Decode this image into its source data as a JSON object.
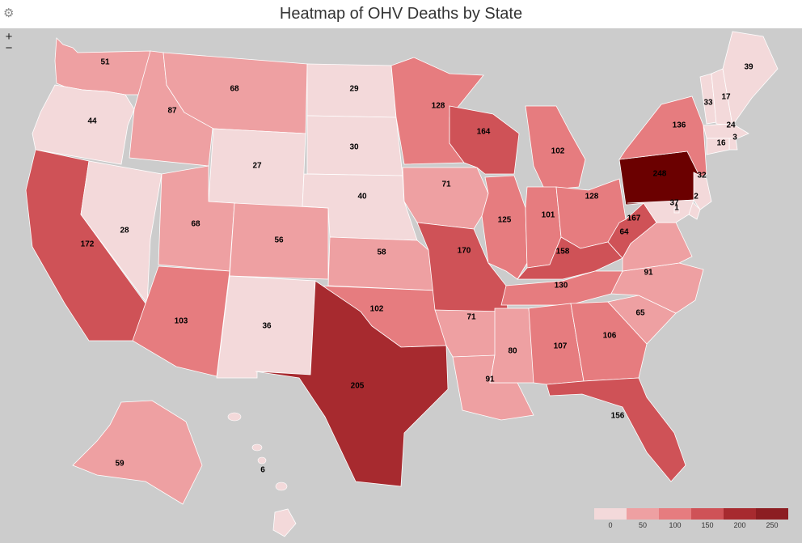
{
  "title": "Heatmap of OHV Deaths by State",
  "controls": {
    "zoom_in": "+",
    "zoom_out": "−"
  },
  "colors": {
    "background": "#cccccc",
    "scale": [
      "#f3d9da",
      "#eea0a2",
      "#e67c7f",
      "#cf5257",
      "#a72a2f",
      "#8c1d22"
    ],
    "extreme": "#6b0000"
  },
  "legend": {
    "ticks": [
      "0",
      "50",
      "100",
      "150",
      "200",
      "250"
    ]
  },
  "chart_data": {
    "type": "heatmap",
    "title": "Heatmap of OHV Deaths by State",
    "states": [
      {
        "state": "WA",
        "value": 51
      },
      {
        "state": "OR",
        "value": 44
      },
      {
        "state": "CA",
        "value": 172
      },
      {
        "state": "NV",
        "value": 28
      },
      {
        "state": "ID",
        "value": 87
      },
      {
        "state": "MT",
        "value": 68
      },
      {
        "state": "WY",
        "value": 27
      },
      {
        "state": "UT",
        "value": 68
      },
      {
        "state": "AZ",
        "value": 103
      },
      {
        "state": "CO",
        "value": 56
      },
      {
        "state": "NM",
        "value": 36
      },
      {
        "state": "ND",
        "value": 29
      },
      {
        "state": "SD",
        "value": 30
      },
      {
        "state": "NE",
        "value": 40
      },
      {
        "state": "KS",
        "value": 58
      },
      {
        "state": "OK",
        "value": 102
      },
      {
        "state": "TX",
        "value": 205
      },
      {
        "state": "MN",
        "value": 128
      },
      {
        "state": "IA",
        "value": 71
      },
      {
        "state": "MO",
        "value": 170
      },
      {
        "state": "AR",
        "value": 71
      },
      {
        "state": "LA",
        "value": 91
      },
      {
        "state": "WI",
        "value": 164
      },
      {
        "state": "IL",
        "value": 125
      },
      {
        "state": "MI",
        "value": 102
      },
      {
        "state": "IN",
        "value": 101
      },
      {
        "state": "OH",
        "value": 128
      },
      {
        "state": "KY",
        "value": 158
      },
      {
        "state": "TN",
        "value": 130
      },
      {
        "state": "MS",
        "value": 80
      },
      {
        "state": "AL",
        "value": 107
      },
      {
        "state": "GA",
        "value": 106
      },
      {
        "state": "FL",
        "value": 156
      },
      {
        "state": "SC",
        "value": 65
      },
      {
        "state": "NC",
        "value": 91
      },
      {
        "state": "VA",
        "value": 64
      },
      {
        "state": "WV",
        "value": 167
      },
      {
        "state": "PA",
        "value": 248
      },
      {
        "state": "NY",
        "value": 136
      },
      {
        "state": "VT",
        "value": 33
      },
      {
        "state": "NH",
        "value": 17
      },
      {
        "state": "ME",
        "value": 39
      },
      {
        "state": "MA",
        "value": 24
      },
      {
        "state": "RI",
        "value": 3
      },
      {
        "state": "CT",
        "value": 16
      },
      {
        "state": "NJ",
        "value": 32
      },
      {
        "state": "DE",
        "value": 2
      },
      {
        "state": "MD",
        "value": 37
      },
      {
        "state": "DC",
        "value": 1
      },
      {
        "state": "AK",
        "value": 59
      },
      {
        "state": "HI",
        "value": 6
      }
    ],
    "color_scale": {
      "min": 0,
      "max": 250
    }
  }
}
